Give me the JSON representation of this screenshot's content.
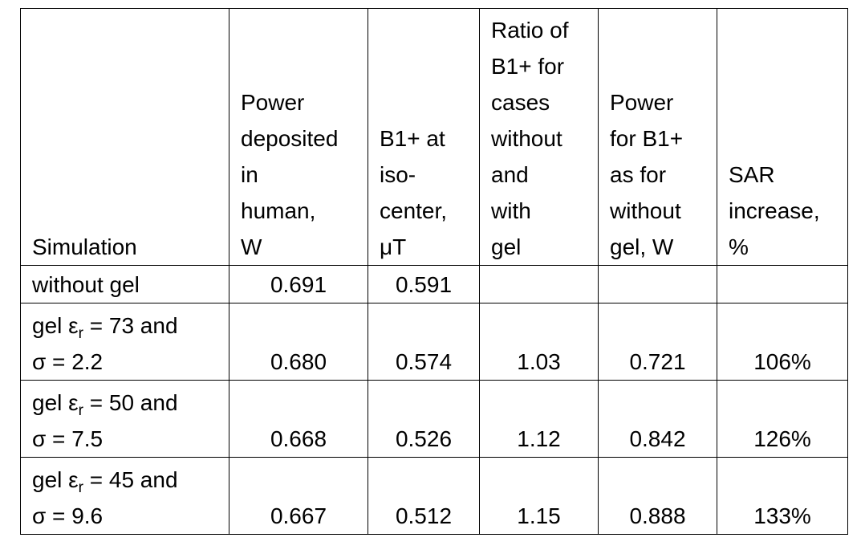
{
  "table": {
    "header": [
      [
        "Simulation"
      ],
      [
        "Power",
        "deposited",
        "in",
        "human,",
        "W"
      ],
      [
        "B1+ at",
        "iso-",
        "center,",
        "μT"
      ],
      [
        "Ratio of",
        "B1+ for",
        "cases",
        "without",
        "and",
        "with",
        "gel"
      ],
      [
        "Power",
        "for B1+",
        "as for",
        "without",
        "gel, W"
      ],
      [
        "SAR",
        "increase,",
        "%"
      ]
    ],
    "rows": [
      {
        "label": [
          "without gel"
        ],
        "cells": [
          "0.691",
          "0.591"
        ]
      },
      {
        "label": [
          "gel ε",
          "r",
          " = 73 and"
        ],
        "label2": "σ = 2.2",
        "cells": [
          "0.680",
          "0.574",
          "1.03",
          "0.721",
          "106%"
        ]
      },
      {
        "label": [
          "gel ε",
          "r",
          " = 50 and"
        ],
        "label2": "σ = 7.5",
        "cells": [
          "0.668",
          "0.526",
          "1.12",
          "0.842",
          "126%"
        ]
      },
      {
        "label": [
          "gel ε",
          "r",
          " = 45 and"
        ],
        "label2": "σ = 9.6",
        "cells": [
          "0.667",
          "0.512",
          "1.15",
          "0.888",
          "133%"
        ]
      }
    ]
  }
}
